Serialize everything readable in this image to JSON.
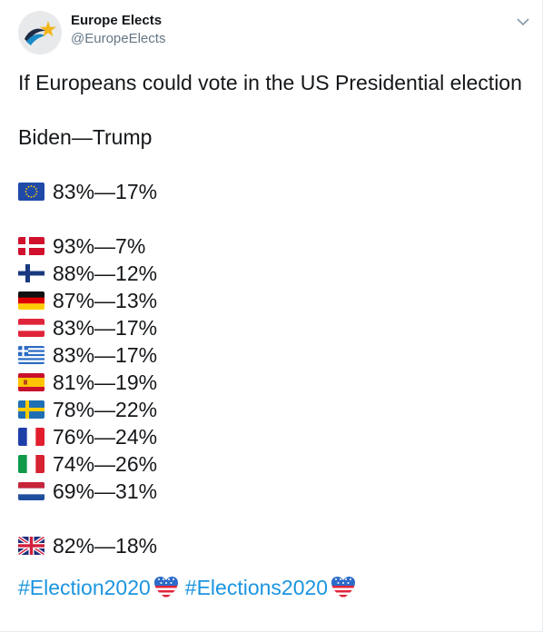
{
  "tweet": {
    "author": {
      "display_name": "Europe Elects",
      "handle": "@EuropeElects",
      "avatar_icon": "europe-elects-logo-icon"
    },
    "menu_icon": "chevron-down-icon",
    "headline": "If Europeans could vote in the US Presidential election",
    "subheading": "Biden—Trump",
    "results": [
      {
        "flag": "eu-flag-icon",
        "text": "83%—17%"
      },
      {
        "flag": "denmark-flag-icon",
        "text": "93%—7%"
      },
      {
        "flag": "finland-flag-icon",
        "text": "88%—12%"
      },
      {
        "flag": "germany-flag-icon",
        "text": "87%—13%"
      },
      {
        "flag": "austria-flag-icon",
        "text": "83%—17%"
      },
      {
        "flag": "greece-flag-icon",
        "text": "83%—17%"
      },
      {
        "flag": "spain-flag-icon",
        "text": "81%—19%"
      },
      {
        "flag": "sweden-flag-icon",
        "text": "78%—22%"
      },
      {
        "flag": "france-flag-icon",
        "text": "76%—24%"
      },
      {
        "flag": "italy-flag-icon",
        "text": "74%—26%"
      },
      {
        "flag": "netherlands-flag-icon",
        "text": "69%—31%"
      },
      {
        "flag": "uk-flag-icon",
        "text": "82%—18%"
      }
    ],
    "hashtags": [
      {
        "text": "#Election2020",
        "emoji": "us-heart-icon"
      },
      {
        "text": "#Elections2020",
        "emoji": "us-heart-icon"
      }
    ],
    "colors": {
      "text": "#14171a",
      "secondary": "#657786",
      "link": "#1b95e0",
      "logo_yellow": "#f2b51a",
      "logo_blue": "#1a8bc6"
    }
  }
}
